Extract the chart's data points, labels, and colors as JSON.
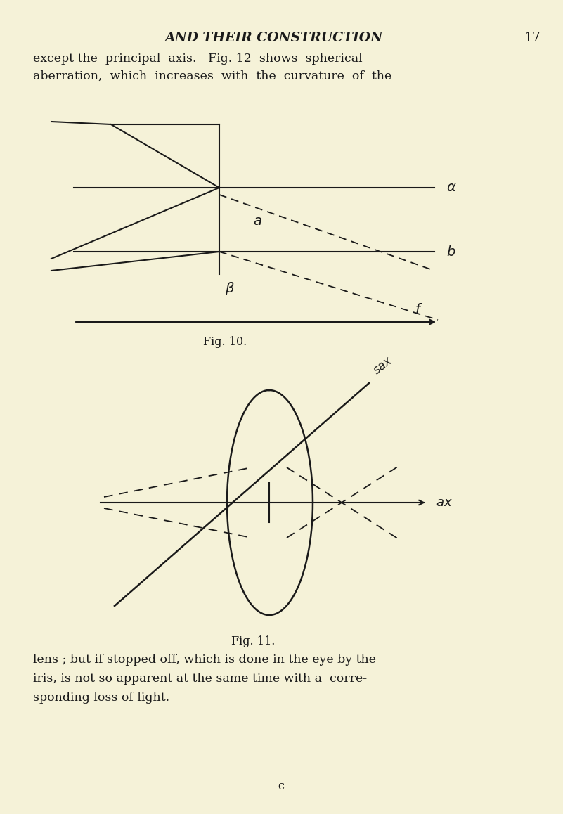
{
  "bg_color": "#f5f2d8",
  "text_color": "#1a1a1a",
  "header_title": "AND THEIR CONSTRUCTION",
  "header_page": "17",
  "para1_line1": "except the  principal  axis.   Fig. 12  shows  spherical",
  "para1_line2": "aberration,  which  increases  with  the  curvature  of  the",
  "fig10_caption": "Fig. 10.",
  "fig11_caption": "Fig. 11.",
  "para2_line1": "lens ; but if stopped off, which is done in the eye by the",
  "para2_line2": "iris, is not so apparent at the same time with a  corre-",
  "para2_line3": "sponding loss of light.",
  "footer": "c",
  "line_color": "#1a1a1a"
}
